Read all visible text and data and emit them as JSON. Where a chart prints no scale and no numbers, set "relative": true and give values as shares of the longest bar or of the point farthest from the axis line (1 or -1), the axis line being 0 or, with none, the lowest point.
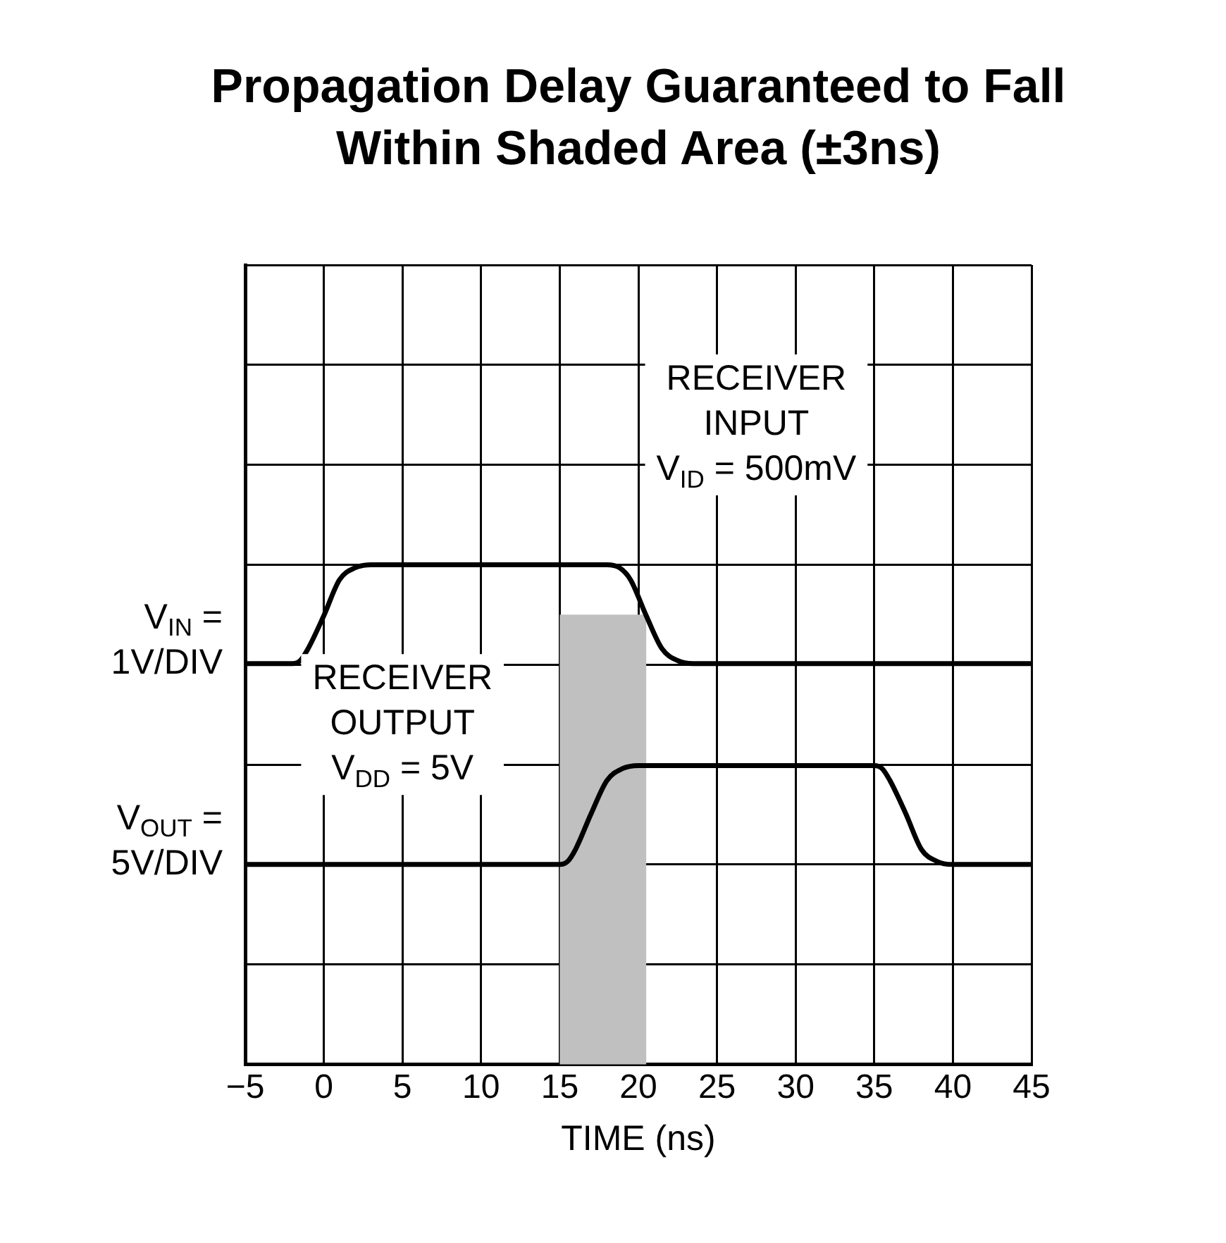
{
  "chart_data": {
    "type": "line",
    "title": "Propagation Delay Guaranteed to Fall\nWithin Shaded Area (±3ns)",
    "xlabel": "TIME (ns)",
    "relative": true,
    "xlim": [
      -5,
      45
    ],
    "xticks": [
      -5,
      0,
      5,
      10,
      15,
      20,
      25,
      30,
      35,
      40,
      45
    ],
    "grid": true,
    "legend": false,
    "marker": "none",
    "line_style": "solid",
    "series": [
      {
        "name": "V$_{IN}$ =\n1V/DIV",
        "color": "#000000",
        "x": [
          -5,
          -2,
          -1.5,
          -1,
          0,
          1,
          2,
          3,
          18,
          18.8,
          19.5,
          20.5,
          21.5,
          22.5,
          23.5,
          45
        ],
        "values": [
          0.67,
          0.67,
          0.68,
          0.72,
          0.83,
          0.95,
          0.99,
          1,
          1,
          0.99,
          0.95,
          0.83,
          0.72,
          0.68,
          0.67,
          0.67
        ]
      },
      {
        "name": "V$_{OUT}$ =\n5V/DIV",
        "color": "#000000",
        "x": [
          -5,
          15,
          15.5,
          16,
          17,
          18,
          19,
          20,
          35,
          35.5,
          36,
          37,
          38,
          39,
          40,
          45
        ],
        "values": [
          0,
          0,
          0.01,
          0.05,
          0.17,
          0.28,
          0.32,
          0.33,
          0.33,
          0.32,
          0.28,
          0.17,
          0.05,
          0.01,
          0,
          0
        ]
      }
    ],
    "bands": [
      {
        "axis": "x",
        "from": 15,
        "to": 20.5,
        "color": "#c0c0c0"
      }
    ],
    "annotations": [
      "RECEIVER\nINPUT\nV$_{ID}$ = 500mV",
      "RECEIVER\nOUTPUT\nV$_{DD}$ = 5V"
    ]
  }
}
